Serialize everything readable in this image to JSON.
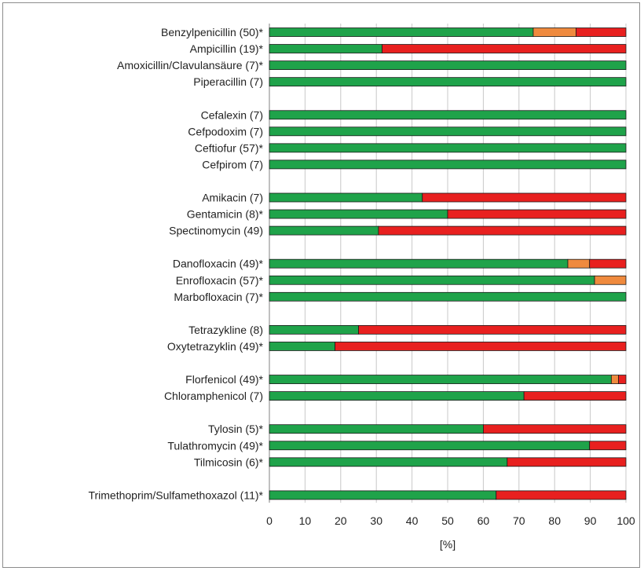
{
  "chart_data": {
    "type": "bar",
    "stacked": true,
    "orientation": "horizontal",
    "xlabel": "[%]",
    "xlim": [
      0,
      100
    ],
    "xticks": [
      0,
      10,
      20,
      30,
      40,
      50,
      60,
      70,
      80,
      90,
      100
    ],
    "grid": "vertical",
    "colors": {
      "green": "#1fa34a",
      "orange": "#ef8a3e",
      "red": "#e8201f"
    },
    "groups": [
      {
        "categories": [
          {
            "label": "Benzylpenicillin (50)*",
            "green": 74,
            "orange": 12,
            "red": 14
          },
          {
            "label": "Ampicillin (19)*",
            "green": 31.6,
            "orange": 0,
            "red": 68.4
          },
          {
            "label": "Amoxicillin/Clavulansäure (7)*",
            "green": 100,
            "orange": 0,
            "red": 0
          },
          {
            "label": "Piperacillin (7)",
            "green": 100,
            "orange": 0,
            "red": 0
          }
        ]
      },
      {
        "categories": [
          {
            "label": "Cefalexin (7)",
            "green": 100,
            "orange": 0,
            "red": 0
          },
          {
            "label": "Cefpodoxim (7)",
            "green": 100,
            "orange": 0,
            "red": 0
          },
          {
            "label": "Ceftiofur (57)*",
            "green": 100,
            "orange": 0,
            "red": 0
          },
          {
            "label": "Cefpirom (7)",
            "green": 100,
            "orange": 0,
            "red": 0
          }
        ]
      },
      {
        "categories": [
          {
            "label": "Amikacin (7)",
            "green": 42.9,
            "orange": 0,
            "red": 57.1
          },
          {
            "label": "Gentamicin (8)*",
            "green": 50,
            "orange": 0,
            "red": 50
          },
          {
            "label": "Spectinomycin (49)",
            "green": 30.6,
            "orange": 0,
            "red": 69.4
          }
        ]
      },
      {
        "categories": [
          {
            "label": "Danofloxacin (49)*",
            "green": 83.7,
            "orange": 6.1,
            "red": 10.2
          },
          {
            "label": "Enrofloxacin (57)*",
            "green": 91.2,
            "orange": 8.8,
            "red": 0
          },
          {
            "label": "Marbofloxacin (7)*",
            "green": 100,
            "orange": 0,
            "red": 0
          }
        ]
      },
      {
        "categories": [
          {
            "label": "Tetrazykline (8)",
            "green": 25,
            "orange": 0,
            "red": 75
          },
          {
            "label": "Oxytetrazyklin (49)*",
            "green": 18.4,
            "orange": 0,
            "red": 81.6
          }
        ]
      },
      {
        "categories": [
          {
            "label": "Florfenicol (49)*",
            "green": 95.9,
            "orange": 2,
            "red": 2.1
          },
          {
            "label": "Chloramphenicol (7)",
            "green": 71.4,
            "orange": 0,
            "red": 28.6
          }
        ]
      },
      {
        "categories": [
          {
            "label": "Tylosin (5)*",
            "green": 60,
            "orange": 0,
            "red": 40
          },
          {
            "label": "Tulathromycin (49)*",
            "green": 89.8,
            "orange": 0,
            "red": 10.2
          },
          {
            "label": "Tilmicosin (6)*",
            "green": 66.7,
            "orange": 0,
            "red": 33.3
          }
        ]
      },
      {
        "categories": [
          {
            "label": "Trimethoprim/Sulfamethoxazol (11)*",
            "green": 63.6,
            "orange": 0,
            "red": 36.4
          }
        ]
      }
    ]
  }
}
